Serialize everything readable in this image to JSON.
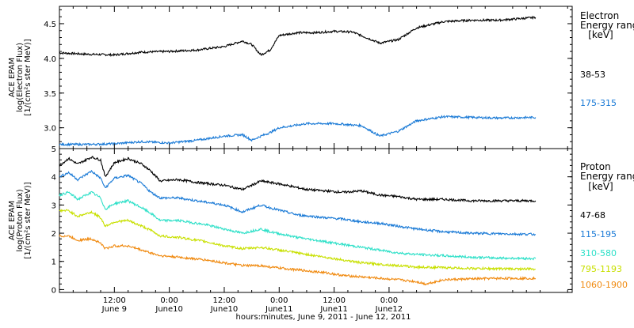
{
  "chart_data": [
    {
      "type": "line",
      "panel": "electron",
      "ylabel_lines": [
        "ACE EPAM",
        "log(Electron Flux)",
        "[1/(cm²s ster MeV)]"
      ],
      "ylim": [
        2.7,
        4.75
      ],
      "yticks": [
        3.0,
        3.5,
        4.0,
        4.5
      ],
      "ytick_labels": [
        "3.0",
        "3.5",
        "4.0",
        "4.5"
      ],
      "legend_title": [
        "Electron",
        "Energy ranges"
      ],
      "legend_unit": "[keV]",
      "series": [
        {
          "name": "38-53",
          "color": "#000000",
          "points": [
            [
              0,
              4.08
            ],
            [
              6,
              4.06
            ],
            [
              12,
              4.05
            ],
            [
              18,
              4.09
            ],
            [
              24,
              4.1
            ],
            [
              30,
              4.12
            ],
            [
              36,
              4.17
            ],
            [
              40,
              4.25
            ],
            [
              42,
              4.2
            ],
            [
              44,
              4.05
            ],
            [
              46,
              4.12
            ],
            [
              48,
              4.33
            ],
            [
              52,
              4.37
            ],
            [
              56,
              4.37
            ],
            [
              60,
              4.39
            ],
            [
              64,
              4.38
            ],
            [
              67,
              4.3
            ],
            [
              70,
              4.22
            ],
            [
              74,
              4.27
            ],
            [
              78,
              4.44
            ],
            [
              84,
              4.53
            ],
            [
              90,
              4.55
            ],
            [
              96,
              4.55
            ],
            [
              102,
              4.58
            ],
            [
              104,
              4.59
            ]
          ]
        },
        {
          "name": "175-315",
          "color": "#1a7ad6",
          "points": [
            [
              0,
              2.76
            ],
            [
              6,
              2.76
            ],
            [
              12,
              2.77
            ],
            [
              18,
              2.8
            ],
            [
              24,
              2.78
            ],
            [
              30,
              2.82
            ],
            [
              36,
              2.88
            ],
            [
              40,
              2.9
            ],
            [
              42,
              2.82
            ],
            [
              44,
              2.88
            ],
            [
              46,
              2.93
            ],
            [
              48,
              3.0
            ],
            [
              54,
              3.06
            ],
            [
              60,
              3.06
            ],
            [
              66,
              3.03
            ],
            [
              70,
              2.88
            ],
            [
              74,
              2.95
            ],
            [
              78,
              3.1
            ],
            [
              84,
              3.16
            ],
            [
              90,
              3.15
            ],
            [
              96,
              3.14
            ],
            [
              104,
              3.15
            ]
          ]
        }
      ]
    },
    {
      "type": "line",
      "panel": "proton",
      "ylabel_lines": [
        "ACE EPAM",
        "log(Proton Flux)",
        "[1/(cm²s ster MeV)]"
      ],
      "ylim": [
        -0.1,
        5.0
      ],
      "yticks": [
        0,
        1,
        2,
        3,
        4,
        5
      ],
      "ytick_labels": [
        "0",
        "1",
        "2",
        "3",
        "4",
        "5"
      ],
      "legend_title": [
        "Proton",
        "Energy ranges"
      ],
      "legend_unit": "[keV]",
      "series": [
        {
          "name": "47-68",
          "color": "#000000",
          "points": [
            [
              0,
              4.4
            ],
            [
              2,
              4.65
            ],
            [
              4,
              4.45
            ],
            [
              7,
              4.7
            ],
            [
              9,
              4.6
            ],
            [
              10,
              4.0
            ],
            [
              12,
              4.5
            ],
            [
              15,
              4.65
            ],
            [
              18,
              4.45
            ],
            [
              20,
              4.2
            ],
            [
              22,
              3.85
            ],
            [
              26,
              3.9
            ],
            [
              30,
              3.8
            ],
            [
              36,
              3.7
            ],
            [
              40,
              3.55
            ],
            [
              44,
              3.85
            ],
            [
              48,
              3.75
            ],
            [
              54,
              3.55
            ],
            [
              58,
              3.5
            ],
            [
              62,
              3.45
            ],
            [
              66,
              3.5
            ],
            [
              70,
              3.35
            ],
            [
              74,
              3.3
            ],
            [
              78,
              3.2
            ],
            [
              84,
              3.2
            ],
            [
              90,
              3.15
            ],
            [
              96,
              3.15
            ],
            [
              104,
              3.15
            ]
          ]
        },
        {
          "name": "115-195",
          "color": "#1a7ad6",
          "points": [
            [
              0,
              4.0
            ],
            [
              2,
              4.15
            ],
            [
              4,
              3.9
            ],
            [
              7,
              4.2
            ],
            [
              9,
              3.95
            ],
            [
              10,
              3.6
            ],
            [
              12,
              3.95
            ],
            [
              15,
              4.05
            ],
            [
              18,
              3.75
            ],
            [
              20,
              3.45
            ],
            [
              22,
              3.25
            ],
            [
              26,
              3.25
            ],
            [
              32,
              3.1
            ],
            [
              36,
              3.0
            ],
            [
              40,
              2.75
            ],
            [
              44,
              3.0
            ],
            [
              46,
              2.9
            ],
            [
              52,
              2.65
            ],
            [
              58,
              2.55
            ],
            [
              62,
              2.5
            ],
            [
              66,
              2.4
            ],
            [
              70,
              2.35
            ],
            [
              74,
              2.25
            ],
            [
              78,
              2.15
            ],
            [
              84,
              2.05
            ],
            [
              90,
              2.0
            ],
            [
              96,
              1.98
            ],
            [
              104,
              1.96
            ]
          ]
        },
        {
          "name": "310-580",
          "color": "#2ee0c8",
          "points": [
            [
              0,
              3.35
            ],
            [
              2,
              3.45
            ],
            [
              4,
              3.2
            ],
            [
              7,
              3.45
            ],
            [
              9,
              3.25
            ],
            [
              10,
              2.85
            ],
            [
              12,
              3.05
            ],
            [
              15,
              3.15
            ],
            [
              18,
              2.9
            ],
            [
              20,
              2.7
            ],
            [
              22,
              2.45
            ],
            [
              26,
              2.45
            ],
            [
              32,
              2.3
            ],
            [
              36,
              2.15
            ],
            [
              40,
              2.0
            ],
            [
              44,
              2.15
            ],
            [
              46,
              2.05
            ],
            [
              52,
              1.85
            ],
            [
              58,
              1.7
            ],
            [
              62,
              1.6
            ],
            [
              66,
              1.5
            ],
            [
              70,
              1.4
            ],
            [
              74,
              1.3
            ],
            [
              78,
              1.25
            ],
            [
              84,
              1.2
            ],
            [
              90,
              1.15
            ],
            [
              96,
              1.12
            ],
            [
              104,
              1.1
            ]
          ]
        },
        {
          "name": "795-1193",
          "color": "#c8e000",
          "points": [
            [
              0,
              2.8
            ],
            [
              2,
              2.8
            ],
            [
              4,
              2.6
            ],
            [
              7,
              2.75
            ],
            [
              9,
              2.55
            ],
            [
              10,
              2.25
            ],
            [
              12,
              2.4
            ],
            [
              15,
              2.45
            ],
            [
              18,
              2.25
            ],
            [
              20,
              2.1
            ],
            [
              22,
              1.9
            ],
            [
              26,
              1.85
            ],
            [
              32,
              1.7
            ],
            [
              36,
              1.55
            ],
            [
              40,
              1.45
            ],
            [
              44,
              1.5
            ],
            [
              46,
              1.45
            ],
            [
              52,
              1.3
            ],
            [
              58,
              1.15
            ],
            [
              62,
              1.05
            ],
            [
              66,
              0.95
            ],
            [
              70,
              0.9
            ],
            [
              74,
              0.85
            ],
            [
              78,
              0.8
            ],
            [
              84,
              0.78
            ],
            [
              90,
              0.75
            ],
            [
              96,
              0.74
            ],
            [
              104,
              0.73
            ]
          ]
        },
        {
          "name": "1060-1900",
          "color": "#f08a10",
          "points": [
            [
              0,
              1.9
            ],
            [
              2,
              1.9
            ],
            [
              4,
              1.75
            ],
            [
              7,
              1.8
            ],
            [
              9,
              1.65
            ],
            [
              10,
              1.45
            ],
            [
              12,
              1.55
            ],
            [
              15,
              1.55
            ],
            [
              18,
              1.4
            ],
            [
              20,
              1.3
            ],
            [
              22,
              1.2
            ],
            [
              26,
              1.15
            ],
            [
              32,
              1.05
            ],
            [
              36,
              0.95
            ],
            [
              40,
              0.85
            ],
            [
              44,
              0.85
            ],
            [
              46,
              0.8
            ],
            [
              52,
              0.7
            ],
            [
              58,
              0.6
            ],
            [
              62,
              0.5
            ],
            [
              66,
              0.45
            ],
            [
              70,
              0.4
            ],
            [
              74,
              0.35
            ],
            [
              78,
              0.28
            ],
            [
              80,
              0.2
            ],
            [
              84,
              0.35
            ],
            [
              90,
              0.38
            ],
            [
              96,
              0.4
            ],
            [
              104,
              0.4
            ]
          ]
        }
      ]
    }
  ],
  "x_axis": {
    "xlim": [
      0,
      112
    ],
    "ticks": [
      {
        "x": 12,
        "time": "12:00",
        "date": "June 9"
      },
      {
        "x": 24,
        "time": "0:00",
        "date": "June10"
      },
      {
        "x": 36,
        "time": "12:00",
        "date": "June10"
      },
      {
        "x": 48,
        "time": "0:00",
        "date": "June11"
      },
      {
        "x": 60,
        "time": "12:00",
        "date": "June11"
      },
      {
        "x": 72,
        "time": "0:00",
        "date": "June12"
      }
    ],
    "xlabel": "hours:minutes, June  9, 2011 - June 12, 2011"
  }
}
